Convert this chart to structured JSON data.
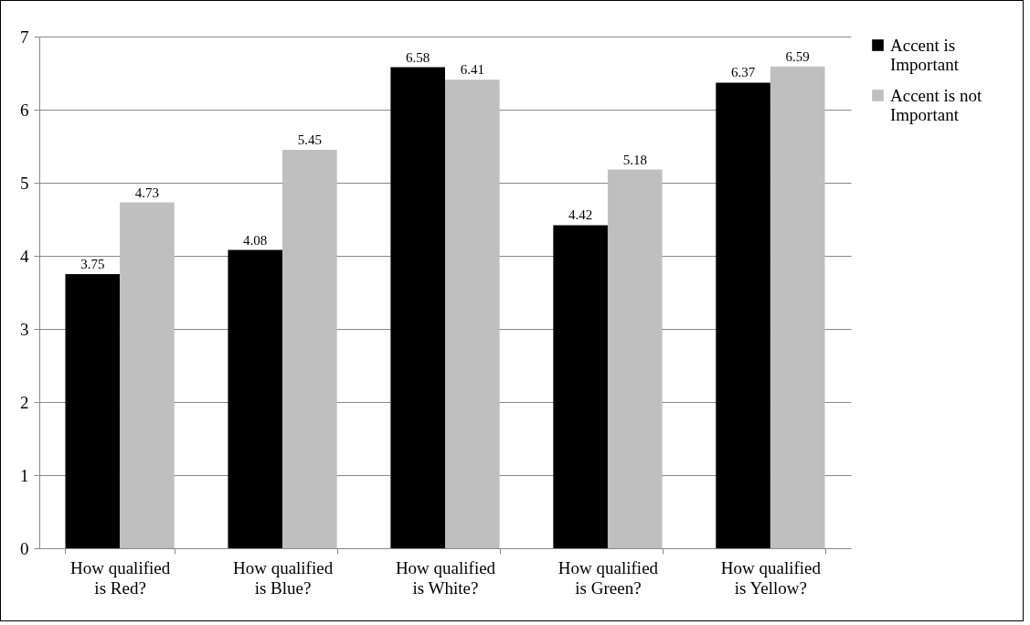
{
  "chart_data": {
    "type": "bar",
    "categories": [
      "How qualified is Red?",
      "How qualified is Blue?",
      "How qualified is White?",
      "How qualified is Green?",
      "How qualified is Yellow?"
    ],
    "series": [
      {
        "name": "Accent is Important",
        "color": "#000000",
        "values": [
          3.75,
          4.08,
          6.58,
          4.42,
          6.37
        ]
      },
      {
        "name": "Accent is not Important",
        "color": "#bfbfbf",
        "values": [
          4.73,
          5.45,
          6.41,
          5.18,
          6.59
        ]
      }
    ],
    "ylim": [
      0,
      7
    ],
    "yticks": [
      0,
      1,
      2,
      3,
      4,
      5,
      6,
      7
    ],
    "grid": "y",
    "legend": "right",
    "data_labels": true
  }
}
